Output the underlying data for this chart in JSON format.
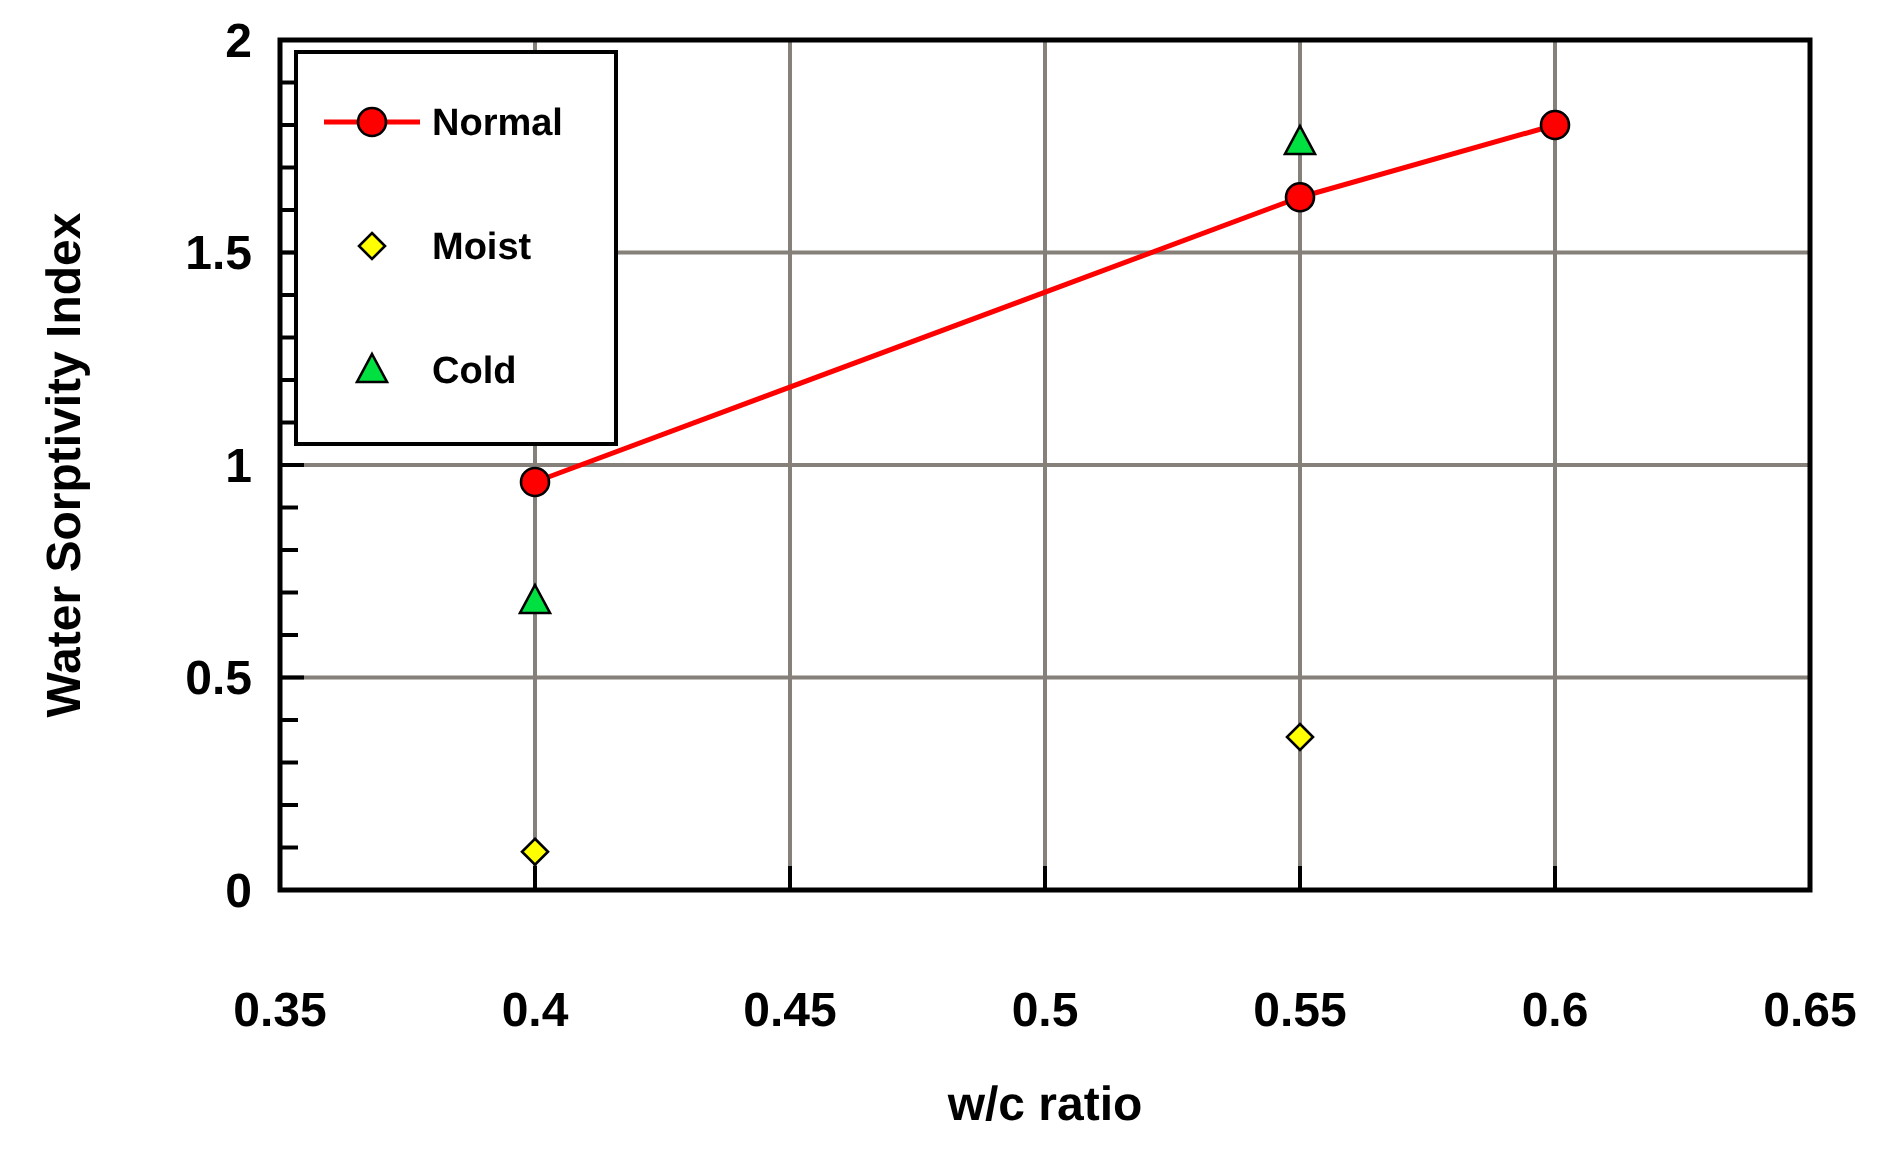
{
  "chart_data": {
    "type": "line",
    "xlabel": "w/c ratio",
    "ylabel": "Water Sorptivity Index",
    "xlim": [
      0.35,
      0.65
    ],
    "xticks": [
      0.35,
      0.4,
      0.45,
      0.5,
      0.55,
      0.6,
      0.65
    ],
    "ylim": [
      0,
      2
    ],
    "yticks": [
      0,
      {
        "value": 0.1,
        "label": null
      },
      {
        "value": 0.2,
        "label": null
      },
      {
        "value": 0.3,
        "label": null
      },
      {
        "value": 0.4,
        "label": null
      },
      0.5,
      {
        "value": 0.6,
        "label": null
      },
      {
        "value": 0.7,
        "label": null
      },
      {
        "value": 0.8,
        "label": null
      },
      {
        "value": 0.9,
        "label": null
      },
      1,
      {
        "value": 1.1,
        "label": null
      },
      {
        "value": 1.2,
        "label": null
      },
      {
        "value": 1.3,
        "label": null
      },
      {
        "value": 1.4,
        "label": null
      },
      1.5,
      {
        "value": 1.6,
        "label": null
      },
      {
        "value": 1.7,
        "label": null
      },
      {
        "value": 1.8,
        "label": null
      },
      {
        "value": 1.9,
        "label": null
      },
      2
    ],
    "grid": true,
    "legend": "top left",
    "series": [
      {
        "name": "Normal",
        "marker": "circle",
        "color": "#ff0000",
        "x": [
          0.4,
          0.55,
          0.6
        ],
        "values": [
          0.96,
          1.63,
          1.8
        ]
      },
      {
        "name": "Moist",
        "type": "scatter",
        "marker": "diamond",
        "color": "#ffff00",
        "x": [
          0.4,
          0.55
        ],
        "values": [
          0.09,
          0.36
        ]
      },
      {
        "name": "Cold",
        "type": "scatter",
        "marker": "triangle",
        "color": "#00e040",
        "x": [
          0.4,
          0.55
        ],
        "values": [
          0.68,
          1.76
        ]
      }
    ]
  }
}
